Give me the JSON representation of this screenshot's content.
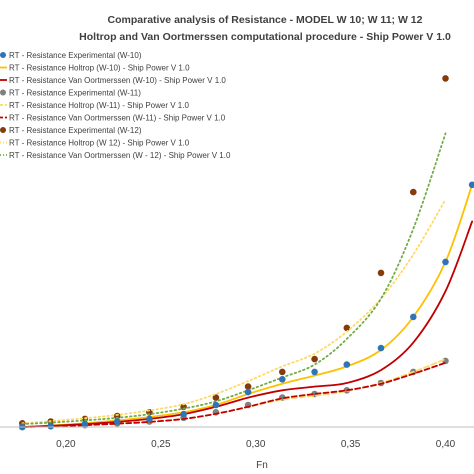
{
  "chart_data": {
    "type": "line",
    "title": "Comparative analysis of Resistance - MODEL W 10; W 11; W 12",
    "subtitle": "Holtrop and Van Oortmerssen computational procedure - Ship Power V 1.0",
    "xlabel": "Fn",
    "ylabel": "",
    "xlim": [
      0.16,
      0.415
    ],
    "ylim": [
      0,
      1
    ],
    "x_ticks": [
      "0,20",
      "0,25",
      "0,30",
      "0,35",
      "0,40"
    ],
    "x_tick_values": [
      0.2,
      0.25,
      0.3,
      0.35,
      0.4
    ],
    "grid": false,
    "legend_position": "top-left",
    "series": [
      {
        "name": "RT - Resistance Experimental (W-10)",
        "color": "#2e75b6",
        "style": "markers",
        "x": [
          0.177,
          0.192,
          0.21,
          0.227,
          0.244,
          0.262,
          0.279,
          0.296,
          0.314,
          0.331,
          0.348,
          0.366,
          0.383,
          0.4,
          0.414
        ],
        "y": [
          0.0,
          0.003,
          0.008,
          0.015,
          0.022,
          0.035,
          0.06,
          0.095,
          0.13,
          0.15,
          0.17,
          0.215,
          0.3,
          0.45,
          0.66
        ]
      },
      {
        "name": "RT - Resistance Holtrop (W-10) - Ship Power V 1.0",
        "color": "#ffc000",
        "style": "solid",
        "x": [
          0.177,
          0.192,
          0.21,
          0.227,
          0.244,
          0.262,
          0.279,
          0.296,
          0.314,
          0.331,
          0.348,
          0.366,
          0.383,
          0.4,
          0.414
        ],
        "y": [
          0.0,
          0.004,
          0.01,
          0.018,
          0.027,
          0.04,
          0.06,
          0.09,
          0.118,
          0.14,
          0.165,
          0.21,
          0.3,
          0.45,
          0.66
        ]
      },
      {
        "name": "RT - Resistance Van Oortmerssen (W-10) - Ship Power V 1.0",
        "color": "#c00000",
        "style": "solid",
        "x": [
          0.177,
          0.192,
          0.21,
          0.227,
          0.244,
          0.262,
          0.279,
          0.296,
          0.314,
          0.331,
          0.348,
          0.366,
          0.383,
          0.4,
          0.414
        ],
        "y": [
          0.0,
          0.003,
          0.008,
          0.014,
          0.022,
          0.035,
          0.055,
          0.08,
          0.1,
          0.11,
          0.12,
          0.155,
          0.23,
          0.37,
          0.56
        ]
      },
      {
        "name": "RT - Resistance Experimental (W-11)",
        "color": "#808080",
        "style": "markers",
        "x": [
          0.177,
          0.192,
          0.21,
          0.227,
          0.244,
          0.262,
          0.279,
          0.296,
          0.314,
          0.331,
          0.348,
          0.366,
          0.383,
          0.4
        ],
        "y": [
          0.0,
          0.002,
          0.005,
          0.01,
          0.015,
          0.025,
          0.04,
          0.06,
          0.08,
          0.09,
          0.1,
          0.12,
          0.15,
          0.18
        ]
      },
      {
        "name": "RT - Resistance Holtrop (W-11) - Ship Power V 1.0",
        "color": "#ffd966",
        "style": "dashed",
        "x": [
          0.177,
          0.192,
          0.21,
          0.227,
          0.244,
          0.262,
          0.279,
          0.296,
          0.314,
          0.331,
          0.348,
          0.366,
          0.383,
          0.4
        ],
        "y": [
          0.0,
          0.002,
          0.005,
          0.009,
          0.014,
          0.022,
          0.036,
          0.055,
          0.075,
          0.085,
          0.098,
          0.12,
          0.15,
          0.185
        ]
      },
      {
        "name": "RT - Resistance Van Oortmerssen (W-11) - Ship Power V 1.0",
        "color": "#c00000",
        "style": "dashed",
        "x": [
          0.177,
          0.192,
          0.21,
          0.227,
          0.244,
          0.262,
          0.279,
          0.296,
          0.314,
          0.331,
          0.348,
          0.366,
          0.383,
          0.4
        ],
        "y": [
          0.0,
          0.002,
          0.005,
          0.009,
          0.014,
          0.022,
          0.036,
          0.055,
          0.078,
          0.09,
          0.1,
          0.118,
          0.145,
          0.175
        ]
      },
      {
        "name": "RT - Resistance Experimental (W-12)",
        "color": "#843c0c",
        "style": "markers",
        "x": [
          0.177,
          0.192,
          0.21,
          0.227,
          0.244,
          0.262,
          0.279,
          0.296,
          0.314,
          0.331,
          0.348,
          0.366,
          0.383,
          0.4
        ],
        "y": [
          0.01,
          0.015,
          0.022,
          0.03,
          0.04,
          0.055,
          0.08,
          0.11,
          0.15,
          0.185,
          0.27,
          0.42,
          0.64,
          0.95
        ]
      },
      {
        "name": "RT - Resistance Holtrop (W 12) - Ship Power V 1.0",
        "color": "#ffd966",
        "style": "dotted",
        "x": [
          0.177,
          0.192,
          0.21,
          0.227,
          0.244,
          0.262,
          0.279,
          0.296,
          0.314,
          0.331,
          0.348,
          0.366,
          0.383,
          0.4
        ],
        "y": [
          0.01,
          0.016,
          0.024,
          0.033,
          0.045,
          0.062,
          0.09,
          0.125,
          0.165,
          0.2,
          0.26,
          0.35,
          0.47,
          0.62
        ]
      },
      {
        "name": "RT - Resistance Van Oortmerssen (W - 12) - Ship Power V 1.0",
        "color": "#70ad47",
        "style": "dotted",
        "x": [
          0.177,
          0.192,
          0.21,
          0.227,
          0.244,
          0.262,
          0.279,
          0.296,
          0.314,
          0.331,
          0.348,
          0.366,
          0.383,
          0.4
        ],
        "y": [
          0.008,
          0.012,
          0.018,
          0.025,
          0.035,
          0.05,
          0.07,
          0.1,
          0.135,
          0.17,
          0.24,
          0.35,
          0.54,
          0.8
        ]
      }
    ]
  }
}
